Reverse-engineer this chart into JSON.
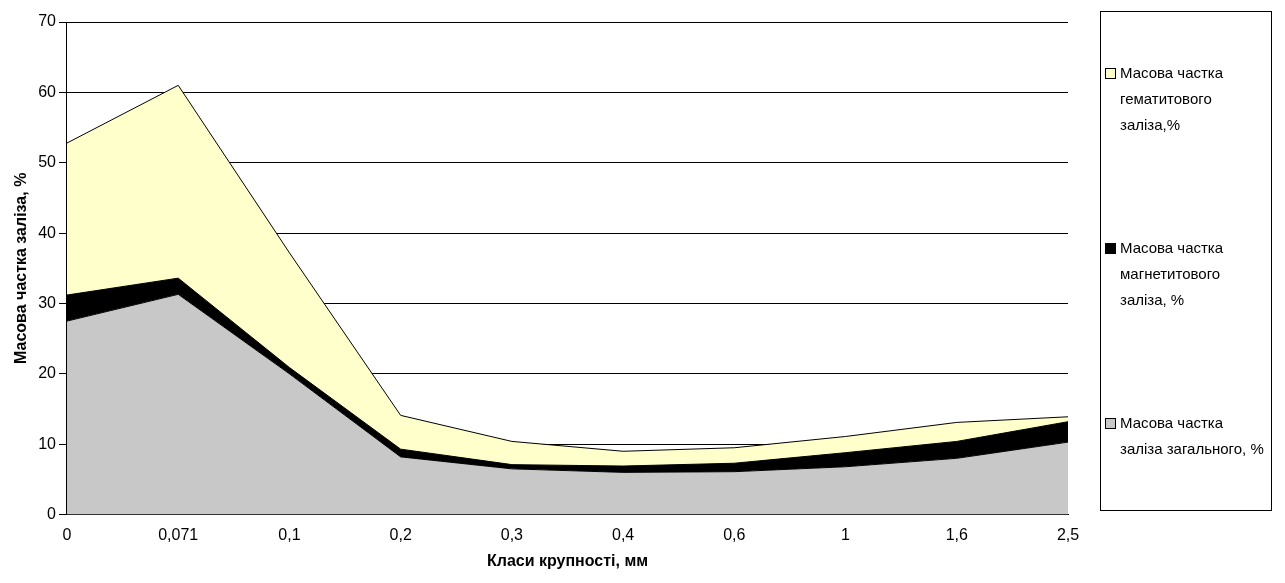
{
  "chart_data": {
    "type": "area",
    "stacked": true,
    "xlabel": "Класи крупності, мм",
    "ylabel": "Масова частка заліза, %",
    "categories": [
      "0",
      "0,071",
      "0,1",
      "0,2",
      "0,3",
      "0,4",
      "0,6",
      "1",
      "1,6",
      "2,5"
    ],
    "series": [
      {
        "name": "Масова частка заліза загального, %",
        "color": "#c8c8c8",
        "values": [
          27.5,
          31.3,
          20,
          8.2,
          6.5,
          6,
          6.1,
          6.8,
          8,
          10.3
        ]
      },
      {
        "name": "Масова частка магнетитового заліза, %",
        "color": "#000000",
        "values": [
          3.7,
          2.3,
          0.9,
          1.1,
          0.6,
          0.9,
          1.2,
          2.0,
          2.4,
          2.9
        ]
      },
      {
        "name": "Масова частка гематитового заліза,%",
        "color": "#ffffcc",
        "values": [
          21.6,
          27.4,
          16.3,
          4.8,
          3.3,
          2.1,
          2.2,
          2.3,
          2.7,
          0.7
        ]
      }
    ],
    "ylim": [
      0,
      70
    ],
    "yticks": [
      0,
      10,
      20,
      30,
      40,
      50,
      60,
      70
    ],
    "grid": "y",
    "legend": "right"
  }
}
